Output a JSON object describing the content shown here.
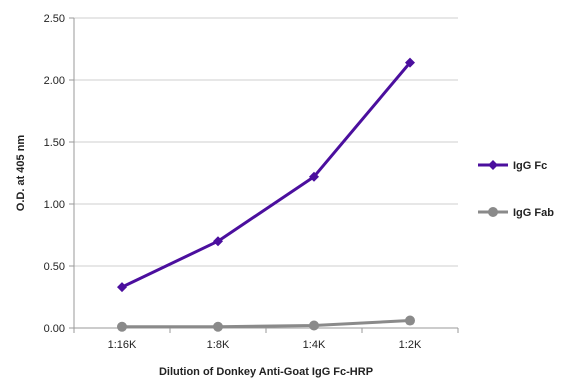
{
  "chart_data": {
    "type": "line",
    "title": "",
    "xlabel": "Dilution of Donkey Anti-Goat IgG Fc-HRP",
    "ylabel": "O.D. at 405 nm",
    "categories": [
      "1:16K",
      "1:8K",
      "1:4K",
      "1:2K"
    ],
    "y_ticks": [
      "0.00",
      "0.50",
      "1.00",
      "1.50",
      "2.00",
      "2.50"
    ],
    "ylim": [
      0,
      2.5
    ],
    "grid": "horizontal",
    "legend_position": "right",
    "series": [
      {
        "name": "IgG Fc",
        "values": [
          0.33,
          0.7,
          1.22,
          2.14
        ],
        "color": "#4b0f9e",
        "marker": "diamond"
      },
      {
        "name": "IgG Fab",
        "values": [
          0.01,
          0.01,
          0.02,
          0.06
        ],
        "color": "#8a8a8a",
        "marker": "circle"
      }
    ]
  }
}
